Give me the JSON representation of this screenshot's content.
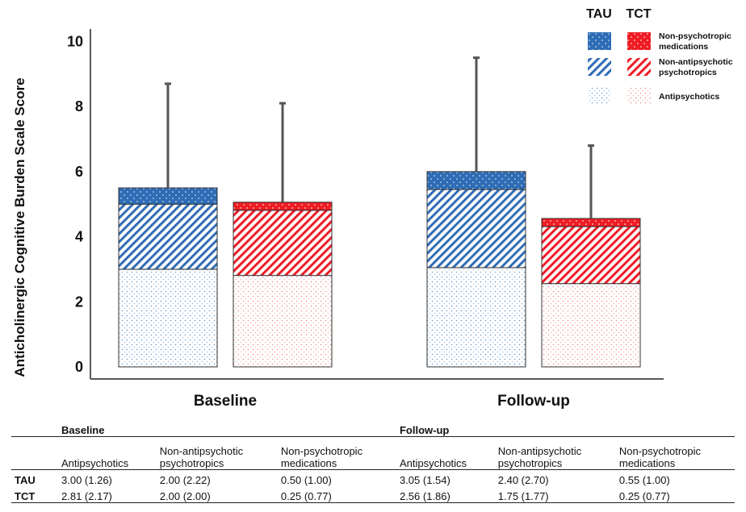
{
  "chart_data": {
    "type": "bar",
    "stacked": true,
    "categories": [
      "Baseline",
      "Follow-up"
    ],
    "groups": [
      "TAU",
      "TCT"
    ],
    "ylabel": "Anticholinergic Cognitive Burden Scale Score",
    "ylim": [
      0,
      10
    ],
    "yticks": [
      0,
      2,
      4,
      6,
      8,
      10
    ],
    "series": [
      {
        "name": "Antipsychotics",
        "pattern": "dots",
        "values": {
          "TAU": [
            3.0,
            3.05
          ],
          "TCT": [
            2.81,
            2.56
          ]
        }
      },
      {
        "name": "Non-antipsychotic psychotropics",
        "pattern": "diagonal-stripes",
        "values": {
          "TAU": [
            2.0,
            2.4
          ],
          "TCT": [
            2.0,
            1.75
          ]
        }
      },
      {
        "name": "Non-psychotropic medications",
        "pattern": "solid-dots",
        "values": {
          "TAU": [
            0.5,
            0.55
          ],
          "TCT": [
            0.25,
            0.25
          ]
        }
      }
    ],
    "error_bar_tops": {
      "TAU": [
        8.7,
        9.5
      ],
      "TCT": [
        8.1,
        6.8
      ]
    },
    "colors": {
      "TAU": "#2e6db5",
      "TCT": "#ee1c24"
    },
    "legend": {
      "placement": "top-right",
      "headers": [
        "TAU",
        "TCT"
      ],
      "entries": [
        {
          "label": "Non-psychotropic medications",
          "lines": [
            "Non-psychotropic",
            "medications"
          ],
          "pattern": "solid-dots"
        },
        {
          "label": "Non-antipsychotic psychotropics",
          "lines": [
            "Non-antipsychotic",
            "psychotropics"
          ],
          "pattern": "diagonal-stripes"
        },
        {
          "label": "Antipsychotics",
          "lines": [
            "Antipsychotics"
          ],
          "pattern": "dots"
        }
      ]
    },
    "grid": false
  },
  "table": {
    "group_headers": [
      "Baseline",
      "Follow-up"
    ],
    "column_headers": [
      "Antipsychotics",
      "Non-antipsychotic\npsychotropics",
      "Non-psychotropic\nmedications",
      "Antipsychotics",
      "Non-antipsychotic\npsychotropics",
      "Non-psychotropic\nmedications"
    ],
    "rows": [
      {
        "label": "TAU",
        "cells": [
          "3.00   (1.26)",
          "2.00 (2.22)",
          "0.50 (1.00)",
          "3.05 (1.54)",
          "2.40 (2.70)",
          "0.55 (1.00)"
        ]
      },
      {
        "label": "TCT",
        "cells": [
          "2.81 (2.17)",
          "2.00 (2.00)",
          "0.25 (0.77)",
          "2.56 (1.86)",
          "1.75 (1.77)",
          "0.25 (0.77)"
        ]
      }
    ]
  }
}
